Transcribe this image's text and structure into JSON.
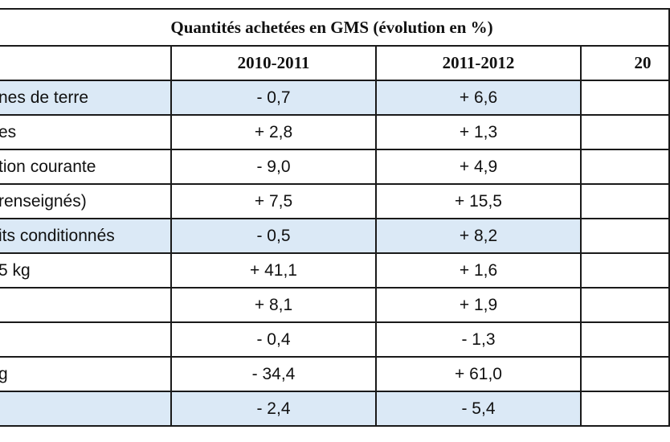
{
  "table": {
    "title": "Quantités achetées en GMS (évolution en %)",
    "columns": [
      "2010-2011",
      "2011-2012",
      "20"
    ],
    "rows": [
      {
        "label": "nes de terre",
        "v1": "- 0,7",
        "v2": "+ 6,6",
        "v3": "",
        "shaded": true
      },
      {
        "label": "es",
        "v1": "+ 2,8",
        "v2": "+ 1,3",
        "v3": "",
        "shaded": false
      },
      {
        "label": "tion courante",
        "v1": "- 9,0",
        "v2": "+ 4,9",
        "v3": "",
        "shaded": false
      },
      {
        "label": " renseignés)",
        "v1": "+ 7,5",
        "v2": "+ 15,5",
        "v3": "",
        "shaded": false
      },
      {
        "label": "its conditionnés",
        "v1": "- 0,5",
        "v2": "+ 8,2",
        "v3": "",
        "shaded": true
      },
      {
        "label": " 5 kg",
        "v1": "+ 41,1",
        "v2": "+ 1,6",
        "v3": "",
        "shaded": false
      },
      {
        "label": "",
        "v1": "+ 8,1",
        "v2": "+ 1,9",
        "v3": "",
        "shaded": false
      },
      {
        "label": "",
        "v1": "- 0,4",
        "v2": "- 1,3",
        "v3": "",
        "shaded": false
      },
      {
        "label": "g",
        "v1": "- 34,4",
        "v2": "+ 61,0",
        "v3": "",
        "shaded": false
      },
      {
        "label": "",
        "v1": "- 2,4",
        "v2": "- 5,4",
        "v3": "",
        "shaded": true
      }
    ]
  },
  "colors": {
    "shaded_row": "#dbe9f6",
    "border": "#1a1a1a"
  }
}
